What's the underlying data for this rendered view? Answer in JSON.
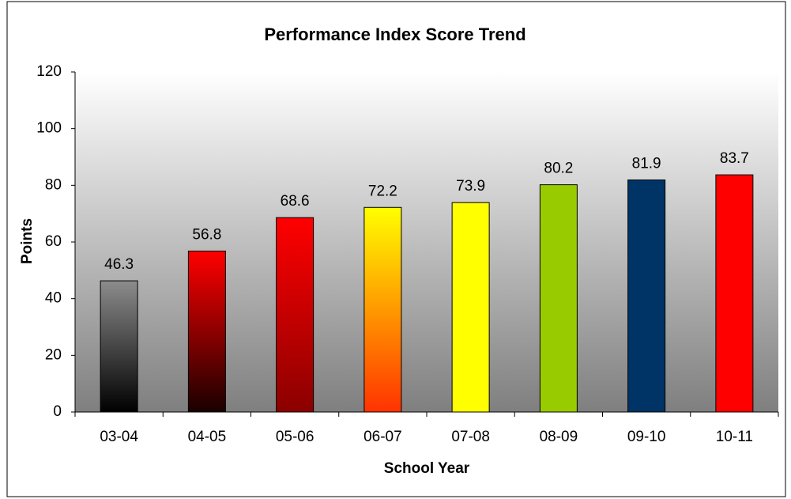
{
  "chart_data": {
    "type": "bar",
    "title": "Performance Index Score Trend",
    "x_label": "School Year",
    "y_label": "Points",
    "categories": [
      "03-04",
      "04-05",
      "05-06",
      "06-07",
      "07-08",
      "08-09",
      "09-10",
      "10-11"
    ],
    "values": [
      46.3,
      56.8,
      68.6,
      72.2,
      73.9,
      80.2,
      81.9,
      83.7
    ],
    "colors": [
      [
        "#8c8c8c",
        "#000000"
      ],
      [
        "#ff0000",
        "#1a0000"
      ],
      [
        "#ff0000",
        "#8b0000"
      ],
      [
        "#ffff00",
        "#ff3300"
      ],
      [
        "#ffff00",
        "#ffff00"
      ],
      [
        "#99cc00",
        "#99cc00"
      ],
      [
        "#003366",
        "#003366"
      ],
      [
        "#ff0000",
        "#ff0000"
      ]
    ],
    "ylim": [
      0,
      120
    ],
    "yticks": [
      0,
      20,
      40,
      60,
      80,
      100,
      120
    ],
    "grid": false
  }
}
